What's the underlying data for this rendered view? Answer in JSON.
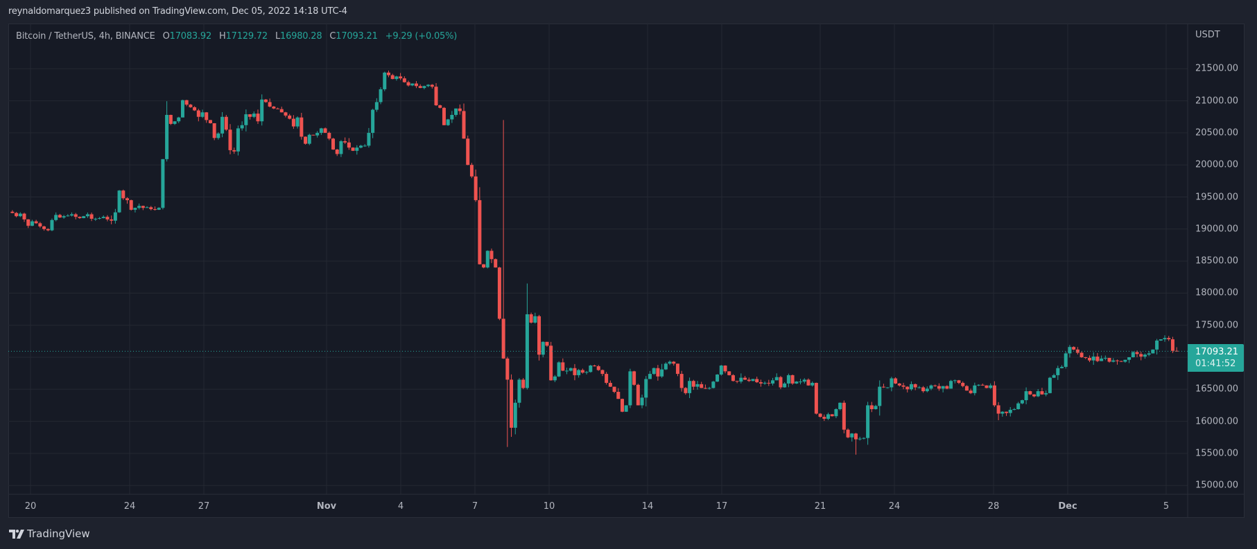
{
  "header": {
    "published_line": "reynaldomarquez3 published on TradingView.com, Dec 05, 2022 14:18 UTC-4"
  },
  "legend": {
    "symbol": "Bitcoin / TetherUS, 4h, BINANCE",
    "open_label": "O",
    "open": "17083.92",
    "high_label": "H",
    "high": "17129.72",
    "low_label": "L",
    "low": "16980.28",
    "close_label": "C",
    "close": "17093.21",
    "change": "+9.29 (+0.05%)"
  },
  "price_axis": {
    "unit": "USDT",
    "labels": [
      "21500.00",
      "21000.00",
      "20500.00",
      "20000.00",
      "19500.00",
      "19000.00",
      "18500.00",
      "18000.00",
      "17500.00",
      "16500.00",
      "16000.00",
      "15500.00",
      "15000.00"
    ]
  },
  "time_axis": {
    "labels": [
      {
        "text": "20",
        "bold": false
      },
      {
        "text": "24",
        "bold": false
      },
      {
        "text": "27",
        "bold": false
      },
      {
        "text": "Nov",
        "bold": true
      },
      {
        "text": "4",
        "bold": false
      },
      {
        "text": "7",
        "bold": false
      },
      {
        "text": "10",
        "bold": false
      },
      {
        "text": "14",
        "bold": false
      },
      {
        "text": "17",
        "bold": false
      },
      {
        "text": "21",
        "bold": false
      },
      {
        "text": "24",
        "bold": false
      },
      {
        "text": "28",
        "bold": false
      },
      {
        "text": "Dec",
        "bold": true
      },
      {
        "text": "5",
        "bold": false
      }
    ]
  },
  "last_price": {
    "price": "17093.21",
    "countdown": "01:41:52"
  },
  "footer": {
    "brand": "TradingView"
  },
  "colors": {
    "up": "#26a69a",
    "down": "#ef5350",
    "background": "#161a25",
    "grid": "#242832",
    "last_price_line": "#26a69a"
  },
  "chart_data": {
    "type": "candlestick",
    "title": "Bitcoin / TetherUS, 4h, BINANCE",
    "xlabel": "",
    "ylabel": "USDT",
    "ylim": [
      14900,
      21750
    ],
    "grid": true,
    "interval": "4h",
    "x_start": "Oct 19",
    "x_end": "Dec 5",
    "last": {
      "open": 17083.92,
      "high": 17129.72,
      "low": 16980.28,
      "close": 17093.21,
      "change": 9.29,
      "change_pct": 0.05
    },
    "key_levels": {
      "period_high": 21470,
      "period_high_date": "Nov 5",
      "period_low": 15480,
      "period_low_date": "Nov 21",
      "crash_low": 15600,
      "crash_date": "Nov 9"
    },
    "closes_4h": [
      19250,
      19200,
      19240,
      19150,
      19050,
      19120,
      19090,
      19040,
      19000,
      18980,
      19140,
      19220,
      19180,
      19200,
      19210,
      19230,
      19190,
      19170,
      19200,
      19230,
      19160,
      19160,
      19170,
      19190,
      19150,
      19130,
      19260,
      19600,
      19480,
      19450,
      19300,
      19330,
      19360,
      19330,
      19340,
      19310,
      19300,
      19330,
      20090,
      20780,
      20640,
      20680,
      20740,
      21010,
      20940,
      20900,
      20850,
      20750,
      20820,
      20700,
      20650,
      20420,
      20490,
      20750,
      20550,
      20230,
      20210,
      20570,
      20620,
      20790,
      20750,
      20800,
      20680,
      21020,
      20980,
      20910,
      20880,
      20870,
      20820,
      20770,
      20720,
      20600,
      20740,
      20440,
      20330,
      20470,
      20460,
      20500,
      20570,
      20500,
      20410,
      20240,
      20170,
      20370,
      20350,
      20270,
      20220,
      20270,
      20300,
      20300,
      20500,
      20860,
      20980,
      21180,
      21440,
      21400,
      21340,
      21380,
      21350,
      21290,
      21240,
      21270,
      21230,
      21200,
      21230,
      21250,
      21220,
      20930,
      20890,
      20620,
      20710,
      20780,
      20880,
      20840,
      20410,
      20000,
      19820,
      19450,
      18450,
      18400,
      18660,
      18530,
      18400,
      17600,
      16980,
      16650,
      15900,
      16290,
      16650,
      16520,
      17670,
      17540,
      17640,
      17040,
      17240,
      17180,
      16640,
      16700,
      16920,
      16790,
      16790,
      16830,
      16720,
      16800,
      16760,
      16770,
      16870,
      16860,
      16800,
      16740,
      16600,
      16540,
      16460,
      16350,
      16150,
      16250,
      16780,
      16570,
      16250,
      16370,
      16660,
      16740,
      16830,
      16700,
      16810,
      16900,
      16930,
      16900,
      16740,
      16520,
      16440,
      16630,
      16540,
      16580,
      16520,
      16510,
      16520,
      16620,
      16730,
      16870,
      16780,
      16720,
      16630,
      16620,
      16680,
      16650,
      16630,
      16660,
      16610,
      16590,
      16600,
      16590,
      16640,
      16690,
      16530,
      16590,
      16720,
      16590,
      16620,
      16620,
      16650,
      16560,
      16600,
      16120,
      16070,
      16040,
      16110,
      16080,
      16190,
      16290,
      15870,
      15750,
      15810,
      15720,
      15730,
      15740,
      16250,
      16190,
      16240,
      16540,
      16530,
      16530,
      16670,
      16590,
      16560,
      16540,
      16500,
      16580,
      16530,
      16530,
      16470,
      16510,
      16560,
      16550,
      16510,
      16550,
      16510,
      16630,
      16640,
      16600,
      16550,
      16480,
      16440,
      16560,
      16570,
      16560,
      16520,
      16560,
      16250,
      16120,
      16150,
      16130,
      16180,
      16190,
      16280,
      16330,
      16470,
      16420,
      16390,
      16470,
      16420,
      16440,
      16680,
      16720,
      16830,
      16850,
      17060,
      17160,
      17120,
      17070,
      17000,
      16990,
      16950,
      17010,
      16940,
      16980,
      16990,
      16930,
      16950,
      16940,
      16930,
      16960,
      17000,
      17080,
      17050,
      17010,
      17040,
      17060,
      17120,
      17260,
      17280,
      17300,
      17280,
      17100,
      17093
    ]
  }
}
